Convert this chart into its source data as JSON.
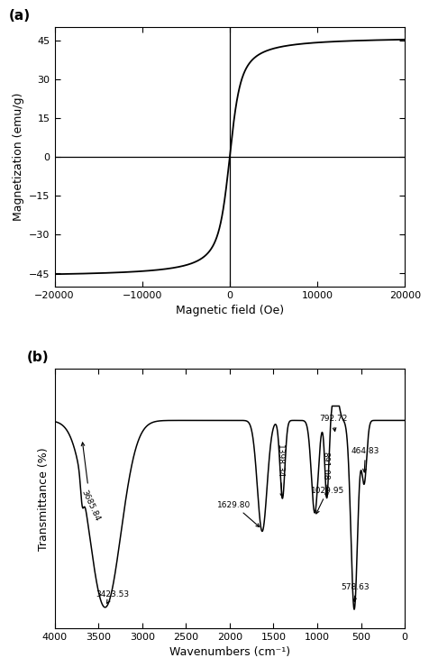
{
  "panel_a": {
    "label": "(a)",
    "xlabel": "Magnetic field (Oe)",
    "ylabel": "Magnetization (emu/g)",
    "xlim": [
      -20000,
      20000
    ],
    "ylim": [
      -50,
      50
    ],
    "xticks": [
      -20000,
      -10000,
      0,
      10000,
      20000
    ],
    "yticks": [
      -45,
      -30,
      -15,
      0,
      15,
      30,
      45
    ],
    "Ms": 46.5,
    "a": 500,
    "line_color": "#000000"
  },
  "panel_b": {
    "label": "(b)",
    "xlabel": "Wavenumbers (cm⁻¹)",
    "ylabel": "Transmittance (%)",
    "xlim": [
      4000,
      0
    ],
    "xticks": [
      4000,
      3500,
      3000,
      2500,
      2000,
      1500,
      1000,
      500,
      0
    ],
    "line_color": "#000000"
  }
}
